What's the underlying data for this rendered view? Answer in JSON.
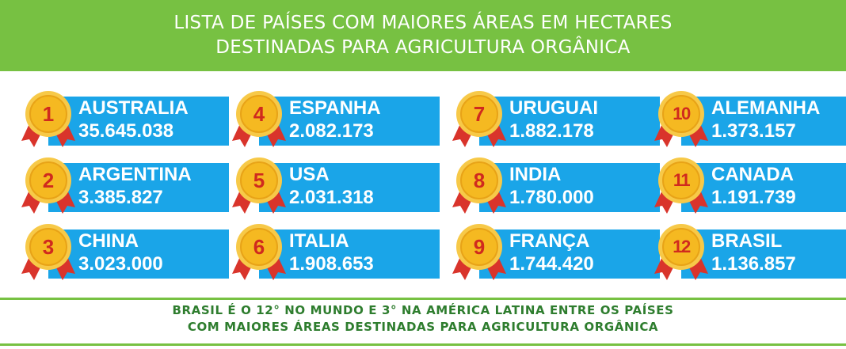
{
  "header": {
    "line1": "LISTA DE PAÍSES COM MAIORES ÁREAS EM HECTARES",
    "line2": "DESTINADAS PARA AGRICULTURA ORGÂNICA",
    "color": "#77c142"
  },
  "ranking": [
    {
      "rank": "1",
      "country": "AUSTRALIA",
      "hectares": "35.645.038"
    },
    {
      "rank": "2",
      "country": "ARGENTINA",
      "hectares": "3.385.827"
    },
    {
      "rank": "3",
      "country": "CHINA",
      "hectares": "3.023.000"
    },
    {
      "rank": "4",
      "country": "ESPANHA",
      "hectares": "2.082.173"
    },
    {
      "rank": "5",
      "country": "USA",
      "hectares": "2.031.318"
    },
    {
      "rank": "6",
      "country": "ITALIA",
      "hectares": "1.908.653"
    },
    {
      "rank": "7",
      "country": "URUGUAI",
      "hectares": "1.882.178"
    },
    {
      "rank": "8",
      "country": "INDIA",
      "hectares": "1.780.000"
    },
    {
      "rank": "9",
      "country": "FRANÇA",
      "hectares": "1.744.420"
    },
    {
      "rank": "10",
      "country": "ALEMANHA",
      "hectares": "1.373.157"
    },
    {
      "rank": "11",
      "country": "CANADA",
      "hectares": "1.191.739"
    },
    {
      "rank": "12",
      "country": "BRASIL",
      "hectares": "1.136.857"
    }
  ],
  "footer": {
    "line1": "BRASIL É O 12° NO MUNDO E 3° NA AMÉRICA LATINA ENTRE OS PAÍSES",
    "line2": "COM MAIORES ÁREAS DESTINADAS PARA AGRICULTURA ORGÂNICA"
  },
  "colors": {
    "box": "#1aa5e8",
    "medal_gold": "#f5b921",
    "medal_ring": "#e8a317",
    "ribbon": "#d9342b",
    "footer_text": "#2e7d2e"
  }
}
